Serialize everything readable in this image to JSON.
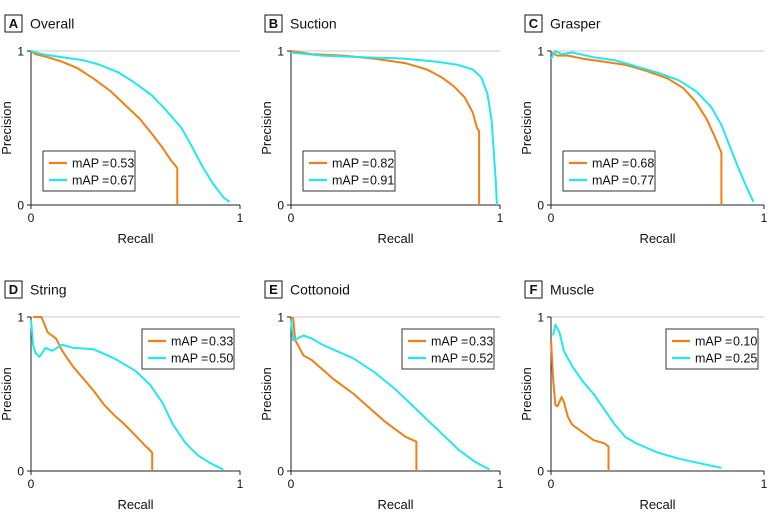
{
  "figure": {
    "xlabel": "Recall",
    "ylabel": "Precision",
    "colors": {
      "series_a": "#F07F17",
      "series_b": "#22E8EE",
      "axis": "#222222",
      "grid": "#C8C8C8"
    }
  },
  "chart_data": [
    {
      "type": "line",
      "id": "A",
      "letter": "A",
      "title": "Overall",
      "xlabel": "Recall",
      "ylabel": "Precision",
      "xlim": [
        0,
        1
      ],
      "ylim": [
        0,
        1
      ],
      "x_ticks": [
        "0",
        "1"
      ],
      "y_ticks": [
        "0",
        "1"
      ],
      "legend_position": "bottom-left",
      "series": [
        {
          "name": "mAP = 0.53",
          "label_left": "mAP",
          "label_right": "0.53",
          "color": "#F07F17",
          "points": [
            [
              0,
              1.0
            ],
            [
              0.02,
              0.98
            ],
            [
              0.08,
              0.96
            ],
            [
              0.15,
              0.93
            ],
            [
              0.22,
              0.89
            ],
            [
              0.3,
              0.82
            ],
            [
              0.38,
              0.74
            ],
            [
              0.45,
              0.65
            ],
            [
              0.52,
              0.56
            ],
            [
              0.58,
              0.46
            ],
            [
              0.63,
              0.37
            ],
            [
              0.67,
              0.29
            ],
            [
              0.7,
              0.24
            ],
            [
              0.7,
              0.0
            ]
          ]
        },
        {
          "name": "mAP = 0.67",
          "label_left": "mAP",
          "label_right": "0.67",
          "color": "#22E8EE",
          "points": [
            [
              0,
              1.0
            ],
            [
              0.05,
              0.98
            ],
            [
              0.15,
              0.96
            ],
            [
              0.25,
              0.94
            ],
            [
              0.33,
              0.91
            ],
            [
              0.42,
              0.86
            ],
            [
              0.5,
              0.79
            ],
            [
              0.58,
              0.71
            ],
            [
              0.65,
              0.61
            ],
            [
              0.72,
              0.5
            ],
            [
              0.77,
              0.38
            ],
            [
              0.82,
              0.25
            ],
            [
              0.87,
              0.14
            ],
            [
              0.92,
              0.05
            ],
            [
              0.95,
              0.02
            ]
          ]
        }
      ]
    },
    {
      "type": "line",
      "id": "B",
      "letter": "B",
      "title": "Suction",
      "xlabel": "Recall",
      "ylabel": "Precision",
      "xlim": [
        0,
        1
      ],
      "ylim": [
        0,
        1
      ],
      "x_ticks": [
        "0",
        "1"
      ],
      "y_ticks": [
        "0",
        "1"
      ],
      "legend_position": "bottom-left",
      "series": [
        {
          "name": "mAP = 0.82",
          "label_left": "mAP",
          "label_right": "0.82",
          "color": "#F07F17",
          "points": [
            [
              0,
              1.0
            ],
            [
              0.1,
              0.98
            ],
            [
              0.25,
              0.97
            ],
            [
              0.4,
              0.95
            ],
            [
              0.55,
              0.92
            ],
            [
              0.65,
              0.88
            ],
            [
              0.72,
              0.83
            ],
            [
              0.78,
              0.77
            ],
            [
              0.83,
              0.7
            ],
            [
              0.87,
              0.6
            ],
            [
              0.89,
              0.5
            ],
            [
              0.9,
              0.48
            ],
            [
              0.9,
              0.0
            ]
          ]
        },
        {
          "name": "mAP = 0.91",
          "label_left": "mAP",
          "label_right": "0.91",
          "color": "#22E8EE",
          "points": [
            [
              0,
              0.99
            ],
            [
              0.15,
              0.97
            ],
            [
              0.35,
              0.96
            ],
            [
              0.55,
              0.95
            ],
            [
              0.7,
              0.93
            ],
            [
              0.8,
              0.91
            ],
            [
              0.87,
              0.88
            ],
            [
              0.91,
              0.83
            ],
            [
              0.94,
              0.72
            ],
            [
              0.96,
              0.55
            ],
            [
              0.97,
              0.35
            ],
            [
              0.98,
              0.15
            ],
            [
              0.985,
              0.0
            ]
          ]
        }
      ]
    },
    {
      "type": "line",
      "id": "C",
      "letter": "C",
      "title": "Grasper",
      "xlabel": "Recall",
      "ylabel": "Precision",
      "xlim": [
        0,
        1
      ],
      "ylim": [
        0,
        1
      ],
      "x_ticks": [
        "0",
        "1"
      ],
      "y_ticks": [
        "0",
        "1"
      ],
      "legend_position": "bottom-left",
      "series": [
        {
          "name": "mAP = 0.68",
          "label_left": "mAP",
          "label_right": "0.68",
          "color": "#F07F17",
          "points": [
            [
              0,
              0.99
            ],
            [
              0.03,
              0.97
            ],
            [
              0.08,
              0.97
            ],
            [
              0.15,
              0.95
            ],
            [
              0.25,
              0.93
            ],
            [
              0.35,
              0.91
            ],
            [
              0.45,
              0.87
            ],
            [
              0.55,
              0.82
            ],
            [
              0.62,
              0.76
            ],
            [
              0.68,
              0.67
            ],
            [
              0.73,
              0.56
            ],
            [
              0.77,
              0.44
            ],
            [
              0.8,
              0.34
            ],
            [
              0.8,
              0.0
            ]
          ]
        },
        {
          "name": "mAP = 0.77",
          "label_left": "mAP",
          "label_right": "0.77",
          "color": "#22E8EE",
          "points": [
            [
              0,
              0.95
            ],
            [
              0.02,
              1.0
            ],
            [
              0.05,
              0.98
            ],
            [
              0.1,
              0.99
            ],
            [
              0.2,
              0.96
            ],
            [
              0.3,
              0.94
            ],
            [
              0.4,
              0.9
            ],
            [
              0.5,
              0.86
            ],
            [
              0.6,
              0.81
            ],
            [
              0.68,
              0.74
            ],
            [
              0.75,
              0.64
            ],
            [
              0.8,
              0.52
            ],
            [
              0.84,
              0.38
            ],
            [
              0.88,
              0.24
            ],
            [
              0.92,
              0.11
            ],
            [
              0.95,
              0.02
            ]
          ]
        }
      ]
    },
    {
      "type": "line",
      "id": "D",
      "letter": "D",
      "title": "String",
      "xlabel": "Recall",
      "ylabel": "Precision",
      "xlim": [
        0,
        1
      ],
      "ylim": [
        0,
        1
      ],
      "x_ticks": [
        "0",
        "1"
      ],
      "y_ticks": [
        "0",
        "1"
      ],
      "legend_position": "top-right",
      "series": [
        {
          "name": "mAP = 0.33",
          "label_left": "mAP",
          "label_right": "0.33",
          "color": "#F07F17",
          "points": [
            [
              0.01,
              1.0
            ],
            [
              0.05,
              1.0
            ],
            [
              0.08,
              0.9
            ],
            [
              0.12,
              0.86
            ],
            [
              0.15,
              0.78
            ],
            [
              0.2,
              0.68
            ],
            [
              0.25,
              0.6
            ],
            [
              0.3,
              0.52
            ],
            [
              0.35,
              0.43
            ],
            [
              0.4,
              0.36
            ],
            [
              0.45,
              0.3
            ],
            [
              0.5,
              0.23
            ],
            [
              0.55,
              0.16
            ],
            [
              0.58,
              0.12
            ],
            [
              0.58,
              0.0
            ]
          ]
        },
        {
          "name": "mAP = 0.50",
          "label_left": "mAP",
          "label_right": "0.50",
          "color": "#22E8EE",
          "points": [
            [
              0,
              0.98
            ],
            [
              0.01,
              0.82
            ],
            [
              0.02,
              0.77
            ],
            [
              0.04,
              0.74
            ],
            [
              0.07,
              0.8
            ],
            [
              0.1,
              0.78
            ],
            [
              0.15,
              0.82
            ],
            [
              0.2,
              0.8
            ],
            [
              0.3,
              0.79
            ],
            [
              0.4,
              0.73
            ],
            [
              0.5,
              0.65
            ],
            [
              0.57,
              0.56
            ],
            [
              0.63,
              0.44
            ],
            [
              0.68,
              0.3
            ],
            [
              0.74,
              0.18
            ],
            [
              0.8,
              0.1
            ],
            [
              0.86,
              0.05
            ],
            [
              0.92,
              0.01
            ]
          ]
        }
      ]
    },
    {
      "type": "line",
      "id": "E",
      "letter": "E",
      "title": "Cottonoid",
      "xlabel": "Recall",
      "ylabel": "Precision",
      "xlim": [
        0,
        1
      ],
      "ylim": [
        0,
        1
      ],
      "x_ticks": [
        "0",
        "1"
      ],
      "y_ticks": [
        "0",
        "1"
      ],
      "legend_position": "top-right",
      "series": [
        {
          "name": "mAP = 0.33",
          "label_left": "mAP",
          "label_right": "0.33",
          "color": "#F07F17",
          "points": [
            [
              0.01,
              1.0
            ],
            [
              0.02,
              0.85
            ],
            [
              0.04,
              0.8
            ],
            [
              0.06,
              0.75
            ],
            [
              0.1,
              0.72
            ],
            [
              0.15,
              0.66
            ],
            [
              0.2,
              0.6
            ],
            [
              0.25,
              0.55
            ],
            [
              0.3,
              0.5
            ],
            [
              0.35,
              0.44
            ],
            [
              0.4,
              0.38
            ],
            [
              0.45,
              0.32
            ],
            [
              0.5,
              0.27
            ],
            [
              0.55,
              0.22
            ],
            [
              0.6,
              0.19
            ],
            [
              0.6,
              0.0
            ]
          ]
        },
        {
          "name": "mAP = 0.52",
          "label_left": "mAP",
          "label_right": "0.52",
          "color": "#22E8EE",
          "points": [
            [
              0,
              0.98
            ],
            [
              0.01,
              0.85
            ],
            [
              0.03,
              0.86
            ],
            [
              0.06,
              0.88
            ],
            [
              0.1,
              0.86
            ],
            [
              0.15,
              0.82
            ],
            [
              0.2,
              0.79
            ],
            [
              0.3,
              0.73
            ],
            [
              0.4,
              0.64
            ],
            [
              0.5,
              0.53
            ],
            [
              0.6,
              0.4
            ],
            [
              0.7,
              0.27
            ],
            [
              0.8,
              0.14
            ],
            [
              0.88,
              0.06
            ],
            [
              0.95,
              0.01
            ]
          ]
        }
      ]
    },
    {
      "type": "line",
      "id": "F",
      "letter": "F",
      "title": "Muscle",
      "xlabel": "Recall",
      "ylabel": "Precision",
      "xlim": [
        0,
        1
      ],
      "ylim": [
        0,
        1
      ],
      "x_ticks": [
        "0",
        "1"
      ],
      "y_ticks": [
        "0",
        "1"
      ],
      "legend_position": "top-right",
      "series": [
        {
          "name": "mAP = 0.10",
          "label_left": "mAP",
          "label_right": "0.10",
          "color": "#F07F17",
          "points": [
            [
              0,
              0.85
            ],
            [
              0.01,
              0.6
            ],
            [
              0.02,
              0.43
            ],
            [
              0.03,
              0.42
            ],
            [
              0.05,
              0.48
            ],
            [
              0.06,
              0.45
            ],
            [
              0.08,
              0.35
            ],
            [
              0.1,
              0.3
            ],
            [
              0.15,
              0.25
            ],
            [
              0.2,
              0.2
            ],
            [
              0.25,
              0.18
            ],
            [
              0.27,
              0.16
            ],
            [
              0.27,
              0.0
            ]
          ]
        },
        {
          "name": "mAP = 0.25",
          "label_left": "mAP",
          "label_right": "0.25",
          "color": "#22E8EE",
          "points": [
            [
              0.01,
              0.88
            ],
            [
              0.02,
              0.95
            ],
            [
              0.04,
              0.9
            ],
            [
              0.06,
              0.78
            ],
            [
              0.1,
              0.68
            ],
            [
              0.15,
              0.58
            ],
            [
              0.2,
              0.5
            ],
            [
              0.25,
              0.4
            ],
            [
              0.3,
              0.3
            ],
            [
              0.35,
              0.22
            ],
            [
              0.4,
              0.18
            ],
            [
              0.5,
              0.12
            ],
            [
              0.6,
              0.08
            ],
            [
              0.7,
              0.05
            ],
            [
              0.8,
              0.02
            ]
          ]
        }
      ]
    }
  ]
}
